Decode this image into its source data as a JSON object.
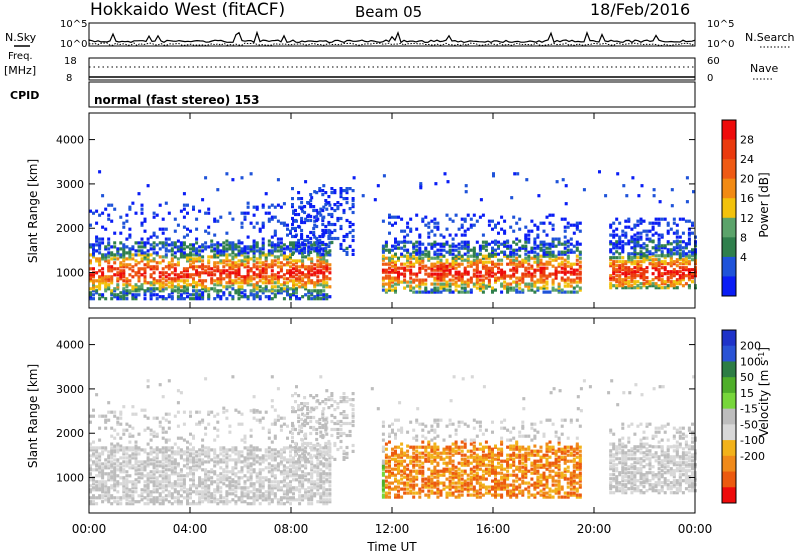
{
  "header": {
    "title": "Hokkaido West (fitACF)",
    "beam": "Beam 05",
    "date": "18/Feb/2016"
  },
  "strip": {
    "nsky_label": "N.Sky",
    "nsearch_label": "N.Search",
    "freq_label_1": "Freq.",
    "freq_label_2": "[MHz]",
    "nave_label": "Nave",
    "cpid_label": "CPID",
    "cpid_value": "normal (fast stereo) 153",
    "noise_top": "10^5",
    "noise_bottom": "10^0",
    "freq_top": "18",
    "freq_bottom": "8",
    "nave_top": "60",
    "nave_bottom": "0"
  },
  "x_axis": {
    "label": "Time UT",
    "ticks": [
      "00:00",
      "04:00",
      "08:00",
      "12:00",
      "16:00",
      "20:00",
      "00:00"
    ]
  },
  "colors": {
    "power": [
      "#0a1df5",
      "#1f53d9",
      "#2f7f4c",
      "#5ba36a",
      "#f2c20c",
      "#f28a13",
      "#ef5a14",
      "#ea3a0e",
      "#ee0b0b"
    ],
    "velocity": [
      "#1f33c9",
      "#2a53d5",
      "#2d7d45",
      "#4fae2a",
      "#77d63b",
      "#bdbdbd",
      "#d8d8d8",
      "#f2b21a",
      "#f08a1a",
      "#ec5a0f",
      "#ee0b0b"
    ]
  },
  "chart_data": [
    {
      "type": "heatmap",
      "name": "power",
      "ylabel": "Slant Range [km]",
      "yticks": [
        "1000",
        "2000",
        "3000",
        "4000"
      ],
      "ylim": [
        200,
        4600
      ],
      "xlim_hours": [
        0,
        24
      ],
      "colorbar_label": "Power [dB]",
      "colorbar_ticks": [
        "4",
        "8",
        "12",
        "16",
        "20",
        "24",
        "28"
      ],
      "colorbar_range": [
        0,
        32
      ]
    },
    {
      "type": "heatmap",
      "name": "velocity",
      "ylabel": "Slant Range [km]",
      "yticks": [
        "1000",
        "2000",
        "3000",
        "4000"
      ],
      "ylim": [
        200,
        4600
      ],
      "xlim_hours": [
        0,
        24
      ],
      "colorbar_label": "Velocity [m s^-1]",
      "colorbar_ticks": [
        "200",
        "100",
        "50",
        "15",
        "-15",
        "-50",
        "-100",
        "-200"
      ]
    }
  ]
}
